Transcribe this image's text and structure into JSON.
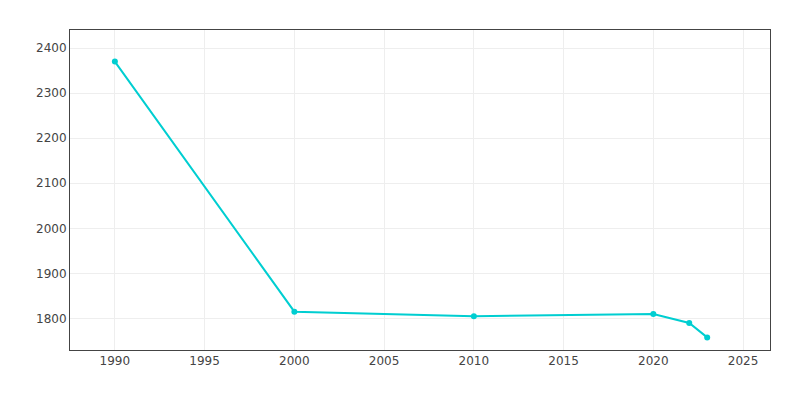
{
  "chart_data": {
    "type": "line",
    "x": [
      1990,
      2000,
      2010,
      2020,
      2022,
      2023
    ],
    "values": [
      2370,
      1815,
      1805,
      1810,
      1790,
      1758
    ],
    "color": "#00CED1",
    "marker": "circle",
    "xlim": [
      1987.5,
      2026.5
    ],
    "ylim": [
      1730,
      2440
    ],
    "xticks": [
      1990,
      1995,
      2000,
      2005,
      2010,
      2015,
      2020,
      2025
    ],
    "yticks": [
      1800,
      1900,
      2000,
      2100,
      2200,
      2300,
      2400
    ],
    "grid": true
  }
}
